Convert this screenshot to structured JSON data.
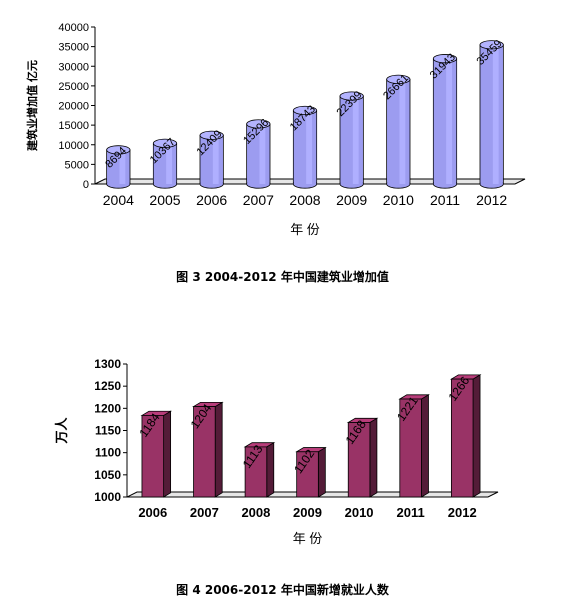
{
  "chart_data": [
    {
      "type": "bar",
      "categories": [
        "2004",
        "2005",
        "2006",
        "2007",
        "2008",
        "2009",
        "2010",
        "2011",
        "2012"
      ],
      "values": [
        8694,
        10367,
        12409,
        15296,
        18743,
        22399,
        26661,
        31943,
        35459
      ],
      "ylim": [
        0,
        40000
      ],
      "yticks": [
        "0",
        "5000",
        "10000",
        "15000",
        "20000",
        "25000",
        "30000",
        "35000",
        "40000"
      ],
      "ylabel": "建筑业增加值  亿元",
      "xlabel": "年  份",
      "caption": "图 3    2004-2012 年中国建筑业增加值",
      "bar_color": "#9c9cf0",
      "grid": false,
      "legend": "none"
    },
    {
      "type": "bar",
      "categories": [
        "2006",
        "2007",
        "2008",
        "2009",
        "2010",
        "2011",
        "2012"
      ],
      "values": [
        1184,
        1204,
        1113,
        1102,
        1168,
        1221,
        1266
      ],
      "ylim": [
        1000,
        1300
      ],
      "yticks": [
        "1000",
        "1050",
        "1100",
        "1150",
        "1200",
        "1250",
        "1300"
      ],
      "ylabel": "万人",
      "xlabel": "年  份",
      "caption": "图 4    2006-2012 年中国新增就业人数",
      "bar_color": "#993366",
      "grid": false,
      "legend": "none"
    }
  ]
}
